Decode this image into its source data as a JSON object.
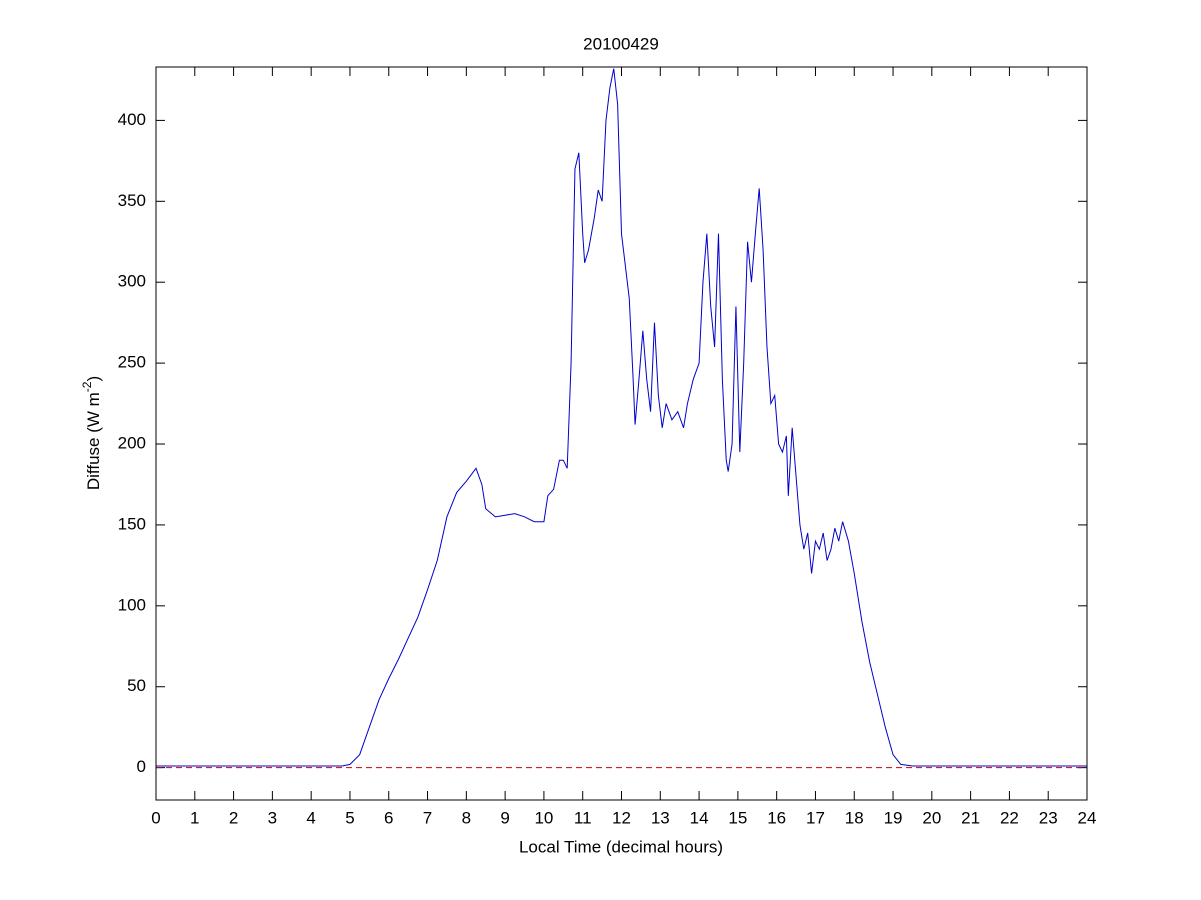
{
  "chart_data": {
    "type": "line",
    "title": "20100429",
    "x_label": "Local Time (decimal hours)",
    "y_label": {
      "text": "Diffuse (W m",
      "superscript": "-2",
      "suffix": ")"
    },
    "xlim": [
      0,
      24
    ],
    "ylim": [
      -20,
      433
    ],
    "xticks": [
      0,
      1,
      2,
      3,
      4,
      5,
      6,
      7,
      8,
      9,
      10,
      11,
      12,
      13,
      14,
      15,
      16,
      17,
      18,
      19,
      20,
      21,
      22,
      23,
      24
    ],
    "yticks": [
      0,
      50,
      100,
      150,
      200,
      250,
      300,
      350,
      400
    ],
    "grid": false,
    "reference_line": {
      "value": 0,
      "color": "#cc0000",
      "dashed": true
    },
    "x": [
      0,
      1,
      2,
      3,
      4,
      4.8,
      5.0,
      5.25,
      5.5,
      5.75,
      6.0,
      6.25,
      6.5,
      6.75,
      7.0,
      7.25,
      7.5,
      7.75,
      8.0,
      8.25,
      8.4,
      8.5,
      8.75,
      9.0,
      9.25,
      9.5,
      9.75,
      10.0,
      10.1,
      10.25,
      10.4,
      10.5,
      10.6,
      10.7,
      10.8,
      10.9,
      11.0,
      11.05,
      11.15,
      11.3,
      11.4,
      11.5,
      11.6,
      11.7,
      11.8,
      11.9,
      12.0,
      12.1,
      12.2,
      12.3,
      12.35,
      12.45,
      12.55,
      12.65,
      12.75,
      12.85,
      12.95,
      13.05,
      13.15,
      13.3,
      13.45,
      13.6,
      13.7,
      13.85,
      14.0,
      14.1,
      14.2,
      14.3,
      14.4,
      14.5,
      14.6,
      14.7,
      14.75,
      14.85,
      14.95,
      15.05,
      15.15,
      15.25,
      15.35,
      15.45,
      15.55,
      15.65,
      15.75,
      15.85,
      15.95,
      16.05,
      16.15,
      16.25,
      16.3,
      16.4,
      16.5,
      16.6,
      16.7,
      16.8,
      16.9,
      17.0,
      17.1,
      17.2,
      17.3,
      17.4,
      17.5,
      17.6,
      17.7,
      17.85,
      18.0,
      18.2,
      18.4,
      18.6,
      18.8,
      19.0,
      19.2,
      19.5,
      20,
      21,
      22,
      23,
      24
    ],
    "series": [
      {
        "color": "#0000cc",
        "values": [
          1,
          1,
          1,
          1,
          1,
          1,
          2,
          8,
          25,
          42,
          55,
          67,
          80,
          93,
          110,
          128,
          155,
          170,
          177,
          185,
          175,
          160,
          155,
          156,
          157,
          155,
          152,
          152,
          168,
          172,
          190,
          190,
          185,
          250,
          370,
          380,
          330,
          312,
          320,
          340,
          357,
          350,
          400,
          420,
          432,
          410,
          330,
          310,
          290,
          240,
          212,
          240,
          270,
          240,
          220,
          275,
          230,
          210,
          225,
          215,
          220,
          210,
          225,
          240,
          250,
          300,
          330,
          285,
          260,
          330,
          240,
          190,
          183,
          200,
          285,
          195,
          250,
          325,
          300,
          330,
          358,
          320,
          260,
          225,
          230,
          200,
          195,
          205,
          168,
          210,
          180,
          150,
          135,
          145,
          120,
          140,
          135,
          145,
          128,
          135,
          148,
          140,
          152,
          140,
          120,
          90,
          65,
          45,
          25,
          8,
          2,
          1,
          1,
          1,
          1,
          1,
          1
        ]
      }
    ]
  }
}
